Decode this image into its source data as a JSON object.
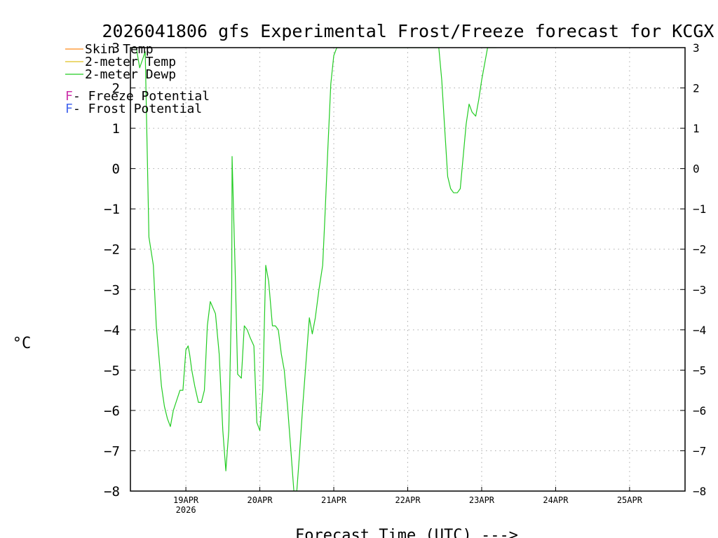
{
  "chart_data": {
    "type": "line",
    "title": "2026041806 gfs Experimental Frost/Freeze forecast for KCGX",
    "xlabel": "Forecast Time (UTC) --->",
    "ylabel": "°C",
    "ylim": [
      -8,
      3
    ],
    "yticks": [
      -8,
      -7,
      -6,
      -5,
      -4,
      -3,
      -2,
      -1,
      0,
      1,
      2,
      3
    ],
    "ytick_labels": [
      "−8",
      "−7",
      "−6",
      "−5",
      "−4",
      "−3",
      "−2",
      "−1",
      "0",
      "1",
      "2",
      "3"
    ],
    "ytick_labels_right": [
      "−8",
      "−7",
      "−6",
      "−5",
      "−4",
      "−3",
      "−2",
      "−1",
      "0",
      "1",
      "2",
      "3"
    ],
    "x_unit": "days since 2026-04-18 00 UTC",
    "xlim": [
      0.25,
      7.75
    ],
    "xticks": [
      {
        "x": 1,
        "label": "19APR",
        "sublabel": "2026"
      },
      {
        "x": 2,
        "label": "20APR",
        "sublabel": ""
      },
      {
        "x": 3,
        "label": "21APR",
        "sublabel": ""
      },
      {
        "x": 4,
        "label": "22APR",
        "sublabel": ""
      },
      {
        "x": 5,
        "label": "23APR",
        "sublabel": ""
      },
      {
        "x": 6,
        "label": "24APR",
        "sublabel": ""
      },
      {
        "x": 7,
        "label": "25APR",
        "sublabel": ""
      }
    ],
    "grid": true,
    "legend": {
      "position": "top-left",
      "series_entries": [
        {
          "label": "Skin Temp",
          "color": "#ff8c1a"
        },
        {
          "label": "2-meter Temp",
          "color": "#e0c020"
        },
        {
          "label": "2-meter Dewp",
          "color": "#22cc22"
        }
      ],
      "symbol_entries": [
        {
          "symbol": "F",
          "label": " - Freeze Potential",
          "color": "#cc33aa"
        },
        {
          "symbol": "F",
          "label": " - Frost Potential",
          "color": "#4466ee"
        }
      ]
    },
    "series": [
      {
        "name": "Skin Temp",
        "color": "#ff8c1a",
        "x": [],
        "y": []
      },
      {
        "name": "2-meter Temp",
        "color": "#e0c020",
        "x": [],
        "y": []
      },
      {
        "name": "2-meter Dewp",
        "color": "#22cc22",
        "x": [
          0.25,
          0.3,
          0.33,
          0.375,
          0.45,
          0.5,
          0.56,
          0.6,
          0.67,
          0.71,
          0.75,
          0.79,
          0.83,
          0.92,
          0.96,
          1.0,
          1.03,
          1.05,
          1.08,
          1.12,
          1.17,
          1.21,
          1.25,
          1.29,
          1.33,
          1.4,
          1.45,
          1.5,
          1.54,
          1.58,
          1.62,
          1.625,
          1.67,
          1.7,
          1.75,
          1.79,
          1.83,
          1.87,
          1.92,
          1.96,
          2.0,
          2.04,
          2.08,
          2.12,
          2.17,
          2.21,
          2.25,
          2.29,
          2.33,
          2.375,
          2.42,
          2.46,
          2.5,
          2.54,
          2.58,
          2.62,
          2.67,
          2.71,
          2.75,
          2.8,
          2.85,
          2.88,
          2.92,
          2.96,
          3.0,
          3.04,
          3.08,
          3.12,
          3.17,
          3.21,
          3.25,
          3.3,
          3.34,
          3.38,
          4.42,
          4.46,
          4.5,
          4.54,
          4.58,
          4.62,
          4.67,
          4.71,
          4.75,
          4.79,
          4.83,
          4.87,
          4.92,
          4.96,
          5.0,
          5.04,
          5.08,
          5.12,
          5.17,
          5.2
        ],
        "y": [
          3.0,
          3.0,
          3.0,
          2.5,
          2.9,
          -1.7,
          -2.4,
          -3.9,
          -5.4,
          -5.9,
          -6.2,
          -6.4,
          -6.0,
          -5.5,
          -5.5,
          -4.5,
          -4.4,
          -4.6,
          -5.0,
          -5.4,
          -5.8,
          -5.8,
          -5.5,
          -3.9,
          -3.3,
          -3.6,
          -4.6,
          -6.5,
          -7.5,
          -6.5,
          -3.0,
          0.3,
          -2.8,
          -5.1,
          -5.2,
          -3.9,
          -4.0,
          -4.2,
          -4.4,
          -6.3,
          -6.5,
          -5.5,
          -2.4,
          -2.8,
          -3.9,
          -3.9,
          -4.0,
          -4.6,
          -5.0,
          -5.9,
          -7.0,
          -8.0,
          -8.0,
          -7.0,
          -5.9,
          -4.9,
          -3.7,
          -4.1,
          -3.7,
          -3.0,
          -2.4,
          -1.2,
          0.5,
          2.1,
          2.8,
          3.0,
          3.0,
          3.0,
          3.0,
          3.0,
          3.0,
          3.0,
          3.0,
          3.0,
          3.0,
          2.2,
          1.0,
          -0.2,
          -0.5,
          -0.6,
          -0.6,
          -0.5,
          0.3,
          1.1,
          1.6,
          1.4,
          1.3,
          1.7,
          2.2,
          2.6,
          3.0,
          3.0,
          3.0,
          3.0
        ]
      }
    ]
  }
}
